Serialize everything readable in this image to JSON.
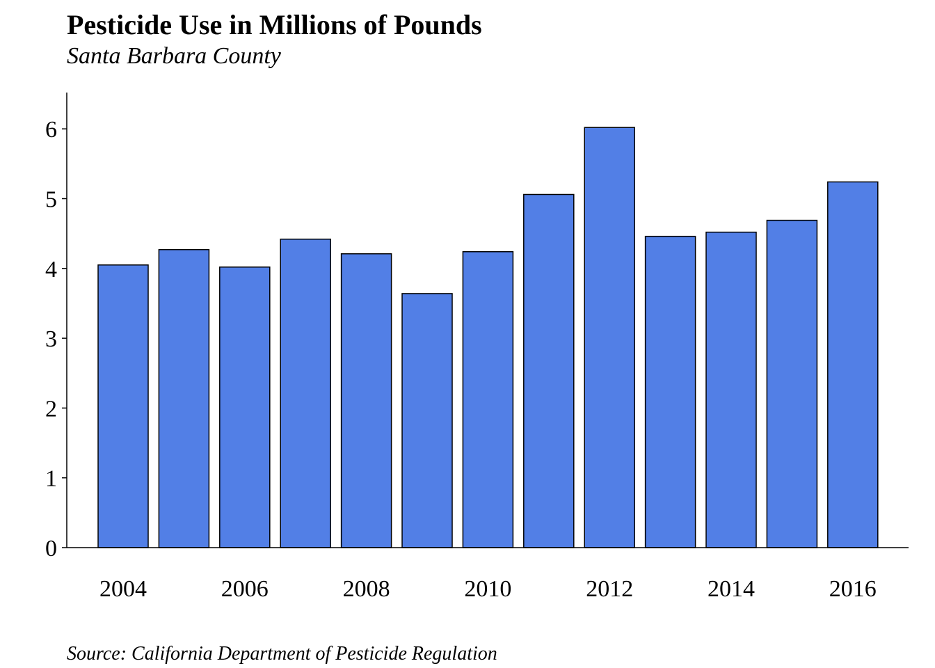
{
  "chart_data": {
    "type": "bar",
    "title": "Pesticide Use in Millions of Pounds",
    "subtitle": "Santa Barbara County",
    "source": "Source: California Department of Pesticide Regulation",
    "xlabel": "",
    "ylabel": "",
    "categories": [
      "2004",
      "2005",
      "2006",
      "2007",
      "2008",
      "2009",
      "2010",
      "2011",
      "2012",
      "2013",
      "2014",
      "2015",
      "2016"
    ],
    "values": [
      4.05,
      4.27,
      4.02,
      4.42,
      4.21,
      3.64,
      4.24,
      5.06,
      6.02,
      4.46,
      4.52,
      4.69,
      5.24
    ],
    "x_tick_labels": [
      "2004",
      "2006",
      "2008",
      "2010",
      "2012",
      "2014",
      "2016"
    ],
    "y_ticks": [
      0,
      1,
      2,
      3,
      4,
      5,
      6
    ],
    "ylim": [
      0,
      6.5
    ],
    "bar_color": "#527fe6",
    "bar_edge_color": "#000000",
    "grid": false,
    "legend": "none"
  }
}
